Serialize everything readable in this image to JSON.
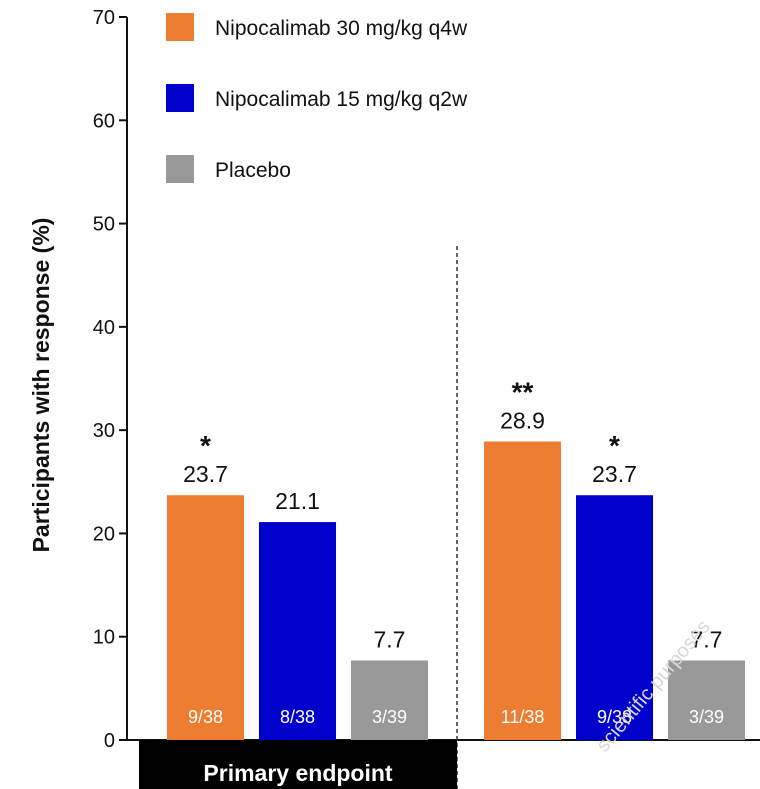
{
  "chart_data": {
    "type": "bar",
    "ylabel": "Participants with response (%)",
    "ylim": [
      0,
      70
    ],
    "yticks": [
      0,
      10,
      20,
      30,
      40,
      50,
      60,
      70
    ],
    "grid": false,
    "legend_position": "top-left",
    "series": [
      {
        "name": "Nipocalimab 30 mg/kg q4w",
        "color": "#ED7D31"
      },
      {
        "name": "Nipocalimab 15 mg/kg q2w",
        "color": "#0000CC"
      },
      {
        "name": "Placebo",
        "color": "#999999"
      }
    ],
    "groups": [
      {
        "label": "Primary endpoint",
        "bars": [
          {
            "series": 0,
            "value": 23.7,
            "value_label": "23.7",
            "count": "9/38",
            "sig": "*"
          },
          {
            "series": 1,
            "value": 21.1,
            "value_label": "21.1",
            "count": "8/38",
            "sig": ""
          },
          {
            "series": 2,
            "value": 7.7,
            "value_label": "7.7",
            "count": "3/39",
            "sig": ""
          }
        ]
      },
      {
        "label": "",
        "bars": [
          {
            "series": 0,
            "value": 28.9,
            "value_label": "28.9",
            "count": "11/38",
            "sig": "**"
          },
          {
            "series": 1,
            "value": 23.7,
            "value_label": "23.7",
            "count": "9/38",
            "sig": "*"
          },
          {
            "series": 2,
            "value": 7.7,
            "value_label": "7.7",
            "count": "3/39",
            "sig": ""
          }
        ]
      }
    ]
  },
  "watermark": "scientific purposes"
}
